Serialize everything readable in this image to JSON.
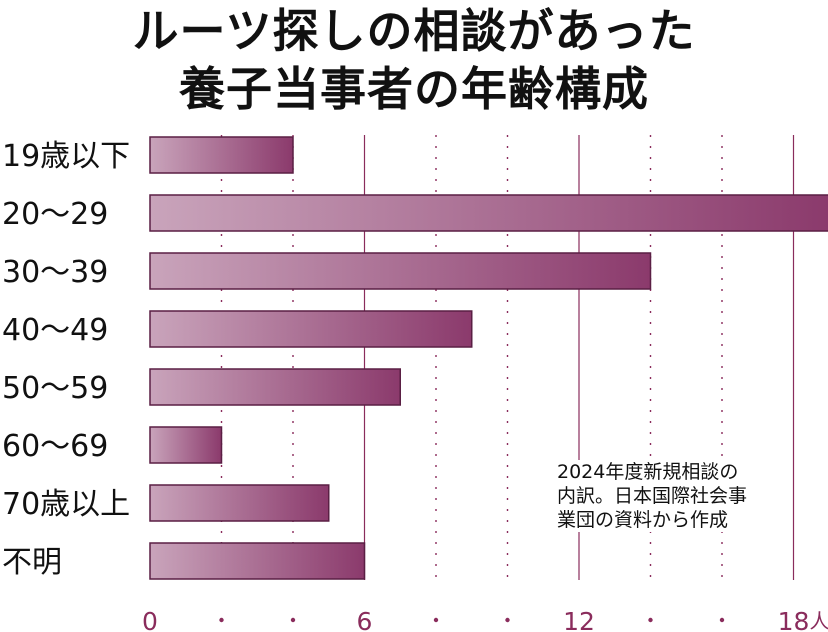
{
  "title": {
    "line1": "ルーツ探しの相談があった",
    "line2": "養子当事者の年齢構成"
  },
  "note": "2024年度新規相談の\n内訳。日本国際社会事\n業団の資料から作成",
  "colors": {
    "bar_light": "#c9a4bb",
    "bar_dark": "#8b3a6c",
    "grid": "#8a2c5c",
    "tick": "#8a2c5c"
  },
  "chart_data": {
    "type": "bar",
    "orientation": "horizontal",
    "title": "ルーツ探しの相談があった養子当事者の年齢構成",
    "categories": [
      "19歳以下",
      "20～29",
      "30～39",
      "40～49",
      "50～59",
      "60～69",
      "70歳以上",
      "不明"
    ],
    "values": [
      4,
      19,
      14,
      9,
      7,
      2,
      5,
      6
    ],
    "xlim": [
      0,
      19
    ],
    "major_ticks": [
      0,
      6,
      12,
      18
    ],
    "minor_ticks": [
      2,
      4,
      8,
      10,
      14,
      16
    ],
    "tick_labels": [
      "0",
      "6",
      "12",
      "18"
    ],
    "unit": "人",
    "xlabel": "",
    "ylabel": ""
  }
}
